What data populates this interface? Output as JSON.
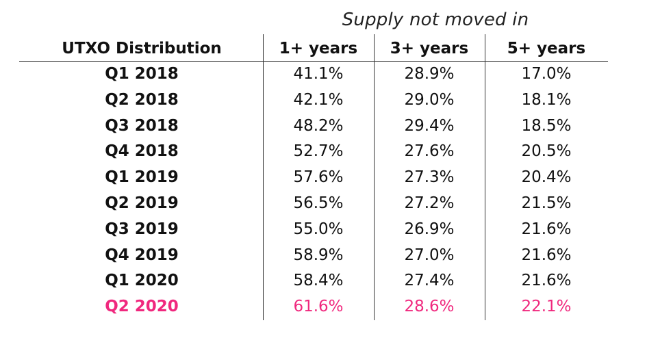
{
  "header": {
    "supertitle": "Supply not moved in",
    "row_header": "UTXO Distribution",
    "columns": [
      "1+ years",
      "3+ years",
      "5+ years"
    ]
  },
  "colors": {
    "text": "#111111",
    "highlight": "#f0287e",
    "rule": "#333333"
  },
  "chart_data": {
    "type": "table",
    "title": "",
    "columns": [
      "UTXO Distribution",
      "1+ years",
      "3+ years",
      "5+ years"
    ],
    "highlight_row": "Q2 2020",
    "rows": [
      {
        "label": "Q1 2018",
        "values": [
          "41.1%",
          "28.9%",
          "17.0%"
        ]
      },
      {
        "label": "Q2 2018",
        "values": [
          "42.1%",
          "29.0%",
          "18.1%"
        ]
      },
      {
        "label": "Q3 2018",
        "values": [
          "48.2%",
          "29.4%",
          "18.5%"
        ]
      },
      {
        "label": "Q4 2018",
        "values": [
          "52.7%",
          "27.6%",
          "20.5%"
        ]
      },
      {
        "label": "Q1 2019",
        "values": [
          "57.6%",
          "27.3%",
          "20.4%"
        ]
      },
      {
        "label": "Q2 2019",
        "values": [
          "56.5%",
          "27.2%",
          "21.5%"
        ]
      },
      {
        "label": "Q3 2019",
        "values": [
          "55.0%",
          "26.9%",
          "21.6%"
        ]
      },
      {
        "label": "Q4 2019",
        "values": [
          "58.9%",
          "27.0%",
          "21.6%"
        ]
      },
      {
        "label": "Q1 2020",
        "values": [
          "58.4%",
          "27.4%",
          "21.6%"
        ]
      },
      {
        "label": "Q2 2020",
        "values": [
          "61.6%",
          "28.6%",
          "22.1%"
        ]
      }
    ]
  }
}
